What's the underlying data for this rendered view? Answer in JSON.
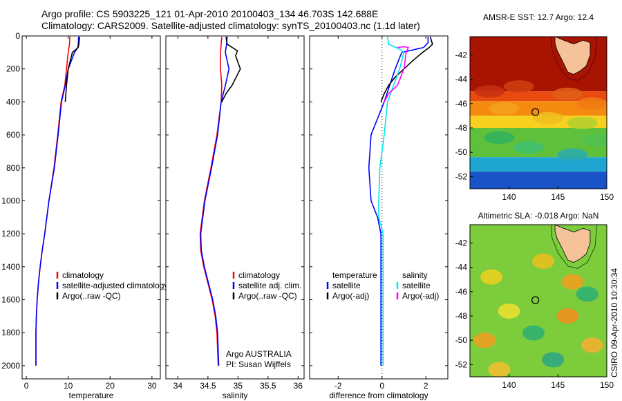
{
  "header": {
    "line1": "Argo profile: CS 5903225_121 01-Apr-2010 20100403_134 46.703S 142.688E",
    "line2": "Climatology: CARS2009. Satellite-adjusted climatology: synTS_20100403.nc (1.1d later)"
  },
  "credit": {
    "org": "Argo AUSTRALIA",
    "pi": "PI: Susan Wijffels",
    "stamp": "CSIRO 09-Apr-2010 10:30:34"
  },
  "colors": {
    "climatology": "#ff0000",
    "satellite": "#0000ff",
    "argo": "#000000",
    "salinity_satellite": "#00e5ee",
    "salinity_argo": "#ff00ff",
    "land": "#f6c29a",
    "marker": "#000000"
  },
  "chart_data": [
    {
      "type": "line",
      "xlabel": "temperature",
      "ylabel": "",
      "xlim": [
        -1,
        32
      ],
      "ylim": [
        2080,
        0
      ],
      "xticks": [
        0,
        10,
        20,
        30
      ],
      "yticks": [
        0,
        200,
        400,
        600,
        800,
        1000,
        1200,
        1400,
        1600,
        1800,
        2000
      ],
      "legend": [
        "climatology",
        "satellite-adjusted climatology",
        "Argo(..raw -QC)"
      ],
      "series": [
        {
          "name": "climatology",
          "color": "#ff0000",
          "x": [
            10.4,
            10.3,
            10.0,
            9.6,
            9.2,
            8.3,
            7.5,
            6.6,
            5.4,
            4.4,
            3.8,
            3.3,
            2.9,
            2.6,
            2.4,
            2.3,
            2.3
          ],
          "y": [
            5,
            50,
            100,
            200,
            300,
            400,
            600,
            800,
            1000,
            1200,
            1300,
            1400,
            1500,
            1600,
            1700,
            1800,
            2000
          ]
        },
        {
          "name": "satellite-adjusted climatology",
          "color": "#0000ff",
          "x": [
            12.5,
            12.4,
            12.3,
            11.5,
            10.0,
            9.3,
            8.4,
            7.6,
            6.7,
            5.4,
            4.4,
            3.8,
            3.3,
            2.9,
            2.6,
            2.4,
            2.3,
            2.3
          ],
          "y": [
            5,
            50,
            70,
            100,
            200,
            300,
            400,
            600,
            800,
            1000,
            1200,
            1300,
            1400,
            1500,
            1600,
            1700,
            1800,
            2000
          ]
        },
        {
          "name": "Argo(..raw -QC)",
          "color": "#000000",
          "x": [
            12.7,
            12.6,
            12.4,
            11.0,
            10.0,
            9.6,
            9.3
          ],
          "y": [
            5,
            40,
            70,
            100,
            200,
            300,
            400
          ]
        }
      ]
    },
    {
      "type": "line",
      "xlabel": "salinity",
      "ylabel": "",
      "xlim": [
        33.8,
        36.1
      ],
      "ylim": [
        2080,
        0
      ],
      "xticks": [
        34,
        34.5,
        35,
        35.5,
        36
      ],
      "legend": [
        "climatology",
        "satellite adj. clim.",
        "Argo(..raw -QC)"
      ],
      "series": [
        {
          "name": "climatology",
          "color": "#ff0000",
          "x": [
            34.73,
            34.72,
            34.71,
            34.71,
            34.73,
            34.72,
            34.65,
            34.55,
            34.44,
            34.37,
            34.38,
            34.43,
            34.5,
            34.57,
            34.62,
            34.65,
            34.67
          ],
          "y": [
            5,
            50,
            100,
            200,
            300,
            400,
            600,
            800,
            1000,
            1200,
            1300,
            1400,
            1500,
            1600,
            1700,
            1800,
            2000
          ]
        },
        {
          "name": "satellite adj. clim.",
          "color": "#0000ff",
          "x": [
            34.82,
            34.81,
            34.79,
            34.85,
            34.79,
            34.72,
            34.66,
            34.56,
            34.45,
            34.38,
            34.39,
            34.44,
            34.51,
            34.58,
            34.63,
            34.66,
            34.68
          ],
          "y": [
            5,
            50,
            100,
            200,
            300,
            400,
            600,
            800,
            1000,
            1200,
            1300,
            1400,
            1500,
            1600,
            1700,
            1800,
            2000
          ]
        },
        {
          "name": "Argo(..raw -QC)",
          "color": "#000000",
          "x": [
            34.8,
            34.82,
            34.99,
            34.96,
            35.04,
            34.9,
            34.8,
            34.73
          ],
          "y": [
            5,
            50,
            90,
            120,
            200,
            300,
            350,
            400
          ]
        }
      ]
    },
    {
      "type": "line",
      "xlabel": "difference from climatology",
      "ylabel": "",
      "xlim": [
        -3.3,
        3.0
      ],
      "ylim": [
        2080,
        0
      ],
      "xticks": [
        -2,
        0,
        2
      ],
      "legend": [
        "temperature",
        "satellite",
        "Argo(-adj)",
        "salinity",
        "satellite",
        "Argo(-adj)"
      ],
      "series": [
        {
          "name": "temperature satellite",
          "color": "#0000ff",
          "x": [
            2.1,
            2.1,
            1.9,
            0.9,
            0.6,
            0.1,
            -0.5,
            -0.6,
            -0.5,
            -0.2,
            -0.05,
            -0.05,
            -0.05
          ],
          "y": [
            5,
            40,
            70,
            100,
            200,
            400,
            600,
            800,
            1000,
            1100,
            1200,
            1600,
            2000
          ]
        },
        {
          "name": "temperature Argo(-adj)",
          "color": "#000000",
          "x": [
            2.2,
            2.3,
            2.15,
            1.85,
            1.4,
            1.0,
            0.6,
            0.3,
            0.1,
            -0.05
          ],
          "y": [
            5,
            50,
            70,
            100,
            150,
            200,
            250,
            300,
            350,
            400
          ]
        },
        {
          "name": "salinity satellite",
          "color": "#00e5ee",
          "x": [
            0.25,
            0.3,
            0.8,
            1.0,
            0.8,
            0.25,
            0.1,
            -0.1,
            -0.15,
            -0.15,
            0.05,
            0.05
          ],
          "y": [
            5,
            50,
            80,
            100,
            200,
            400,
            600,
            800,
            1000,
            1100,
            1200,
            2000
          ]
        },
        {
          "name": "salinity Argo(-adj)",
          "color": "#ff00ff",
          "x": [
            0.7,
            1.0,
            1.2,
            1.1,
            1.0,
            0.7,
            0.3,
            0.1
          ],
          "y": [
            70,
            65,
            70,
            100,
            200,
            300,
            350,
            400
          ]
        }
      ]
    },
    {
      "type": "heatmap",
      "title": "AMSR-E SST: 12.7 Argo: 12.4",
      "xlim": [
        136,
        150
      ],
      "ylim": [
        -53,
        -40.5
      ],
      "xticks": [
        140,
        145,
        150
      ],
      "yticks": [
        -42,
        -44,
        -46,
        -48,
        -50,
        -52
      ],
      "marker": {
        "lon": 142.69,
        "lat": -46.7
      },
      "bands": [
        {
          "lat_top": -40.5,
          "lat_bot": -45.0,
          "color": "#a81400"
        },
        {
          "lat_top": -45.0,
          "lat_bot": -45.8,
          "color": "#e84a10"
        },
        {
          "lat_top": -45.8,
          "lat_bot": -47.0,
          "color": "#f58a10"
        },
        {
          "lat_top": -47.0,
          "lat_bot": -48.0,
          "color": "#f7d020"
        },
        {
          "lat_top": -48.0,
          "lat_bot": -50.4,
          "color": "#5fc03c"
        },
        {
          "lat_top": -50.4,
          "lat_bot": -51.6,
          "color": "#1fa6d0"
        },
        {
          "lat_top": -51.6,
          "lat_bot": -53.0,
          "color": "#1a52c8"
        }
      ]
    },
    {
      "type": "heatmap",
      "title": "Altimetric SLA: -0.018 Argo: NaN",
      "xlim": [
        136,
        150
      ],
      "ylim": [
        -53,
        -40.5
      ],
      "xticks": [
        140,
        145,
        150
      ],
      "yticks": [
        -42,
        -44,
        -46,
        -48,
        -50,
        -52
      ],
      "marker": {
        "lon": 142.69,
        "lat": -46.7
      },
      "base_color": "#7ccc3c",
      "patches": [
        {
          "lon": 138.2,
          "lat": -44.8,
          "color": "#e8d020"
        },
        {
          "lon": 143.5,
          "lat": -43.5,
          "color": "#e8c020"
        },
        {
          "lon": 146.5,
          "lat": -45.2,
          "color": "#f0a020"
        },
        {
          "lon": 140.0,
          "lat": -47.6,
          "color": "#e8e030"
        },
        {
          "lon": 146.0,
          "lat": -48.0,
          "color": "#f09020"
        },
        {
          "lon": 137.5,
          "lat": -50.0,
          "color": "#f0a020"
        },
        {
          "lon": 142.5,
          "lat": -49.4,
          "color": "#30b070"
        },
        {
          "lon": 148.5,
          "lat": -50.4,
          "color": "#f0b030"
        },
        {
          "lon": 144.5,
          "lat": -51.6,
          "color": "#30a880"
        },
        {
          "lon": 139.0,
          "lat": -52.4,
          "color": "#f0c030"
        },
        {
          "lon": 148.0,
          "lat": -46.2,
          "color": "#30b070"
        }
      ]
    }
  ]
}
